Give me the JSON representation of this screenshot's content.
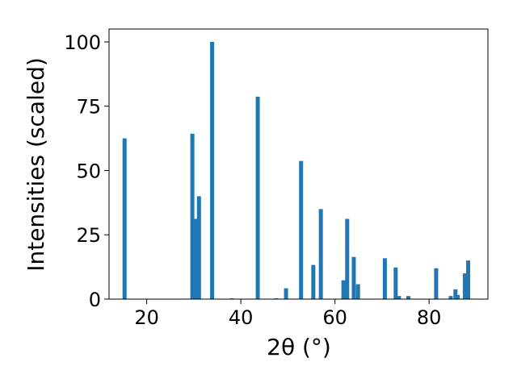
{
  "chart_data": {
    "type": "bar",
    "xlabel": "2θ (°)",
    "ylabel": "Intensities (scaled)",
    "xlim": [
      12,
      92.5
    ],
    "ylim": [
      0,
      105
    ],
    "x_ticks": [
      "20",
      "40",
      "60",
      "80"
    ],
    "y_ticks": [
      "0",
      "25",
      "50",
      "75",
      "100"
    ],
    "bar_color": "#1f77b4",
    "grid": false,
    "bars": [
      {
        "x": 15.3,
        "value": 62.5
      },
      {
        "x": 29.7,
        "value": 64.3
      },
      {
        "x": 30.4,
        "value": 31.2
      },
      {
        "x": 31.1,
        "value": 40.0
      },
      {
        "x": 33.9,
        "value": 100.0
      },
      {
        "x": 38.1,
        "value": 0.3
      },
      {
        "x": 43.6,
        "value": 78.7
      },
      {
        "x": 47.5,
        "value": 0.3
      },
      {
        "x": 49.6,
        "value": 4.2
      },
      {
        "x": 52.8,
        "value": 53.7
      },
      {
        "x": 55.4,
        "value": 13.3
      },
      {
        "x": 57.0,
        "value": 35.0
      },
      {
        "x": 61.8,
        "value": 7.3
      },
      {
        "x": 62.6,
        "value": 31.2
      },
      {
        "x": 64.0,
        "value": 16.4
      },
      {
        "x": 64.9,
        "value": 5.8
      },
      {
        "x": 70.6,
        "value": 15.9
      },
      {
        "x": 72.9,
        "value": 12.3
      },
      {
        "x": 73.6,
        "value": 1.2
      },
      {
        "x": 75.6,
        "value": 1.2
      },
      {
        "x": 81.5,
        "value": 12.0
      },
      {
        "x": 84.6,
        "value": 1.2
      },
      {
        "x": 85.6,
        "value": 3.8
      },
      {
        "x": 86.1,
        "value": 1.6
      },
      {
        "x": 87.6,
        "value": 10.0
      },
      {
        "x": 88.3,
        "value": 15.0
      }
    ]
  }
}
